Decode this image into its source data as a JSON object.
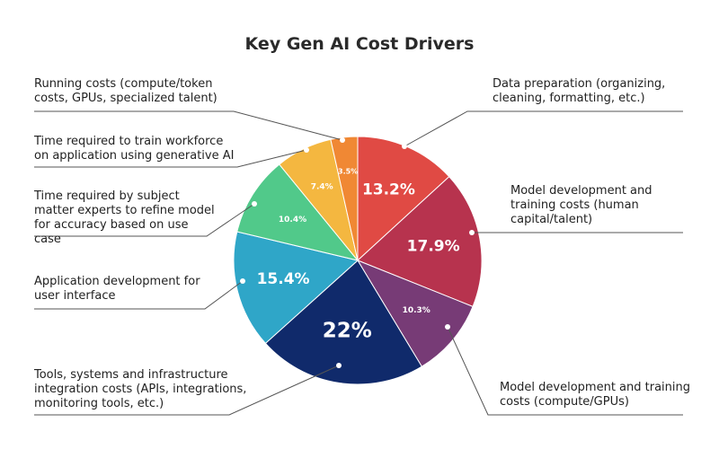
{
  "chart_data": {
    "type": "pie",
    "title": "Key Gen AI Cost Drivers",
    "slices": [
      {
        "label": "Data preparation (organizing, cleaning, formatting, etc.)",
        "value": 13.2,
        "value_label": "13.2%",
        "color": "#e04a44"
      },
      {
        "label": "Model development and training costs (human capital/talent)",
        "value": 17.9,
        "value_label": "17.9%",
        "color": "#b7334e"
      },
      {
        "label": "Model development and training costs (compute/GPUs)",
        "value": 10.3,
        "value_label": "10.3%",
        "color": "#773b76"
      },
      {
        "label": "Tools, systems and infrastructure integration costs (APIs, integrations, monitoring tools, etc.)",
        "value": 22.0,
        "value_label": "22%",
        "color": "#102a6b"
      },
      {
        "label": "Application development for user interface",
        "value": 15.4,
        "value_label": "15.4%",
        "color": "#2fa6c8"
      },
      {
        "label": "Time required by subject matter experts to refine model for accuracy based on use case",
        "value": 10.4,
        "value_label": "10.4%",
        "color": "#51c98a"
      },
      {
        "label": "Time required to train workforce on application using generative AI",
        "value": 7.4,
        "value_label": "7.4%",
        "color": "#f4b740"
      },
      {
        "label": "Running costs (compute/token costs, GPUs, specialized talent)",
        "value": 3.5,
        "value_label": "3.5%",
        "color": "#f08834"
      }
    ]
  }
}
